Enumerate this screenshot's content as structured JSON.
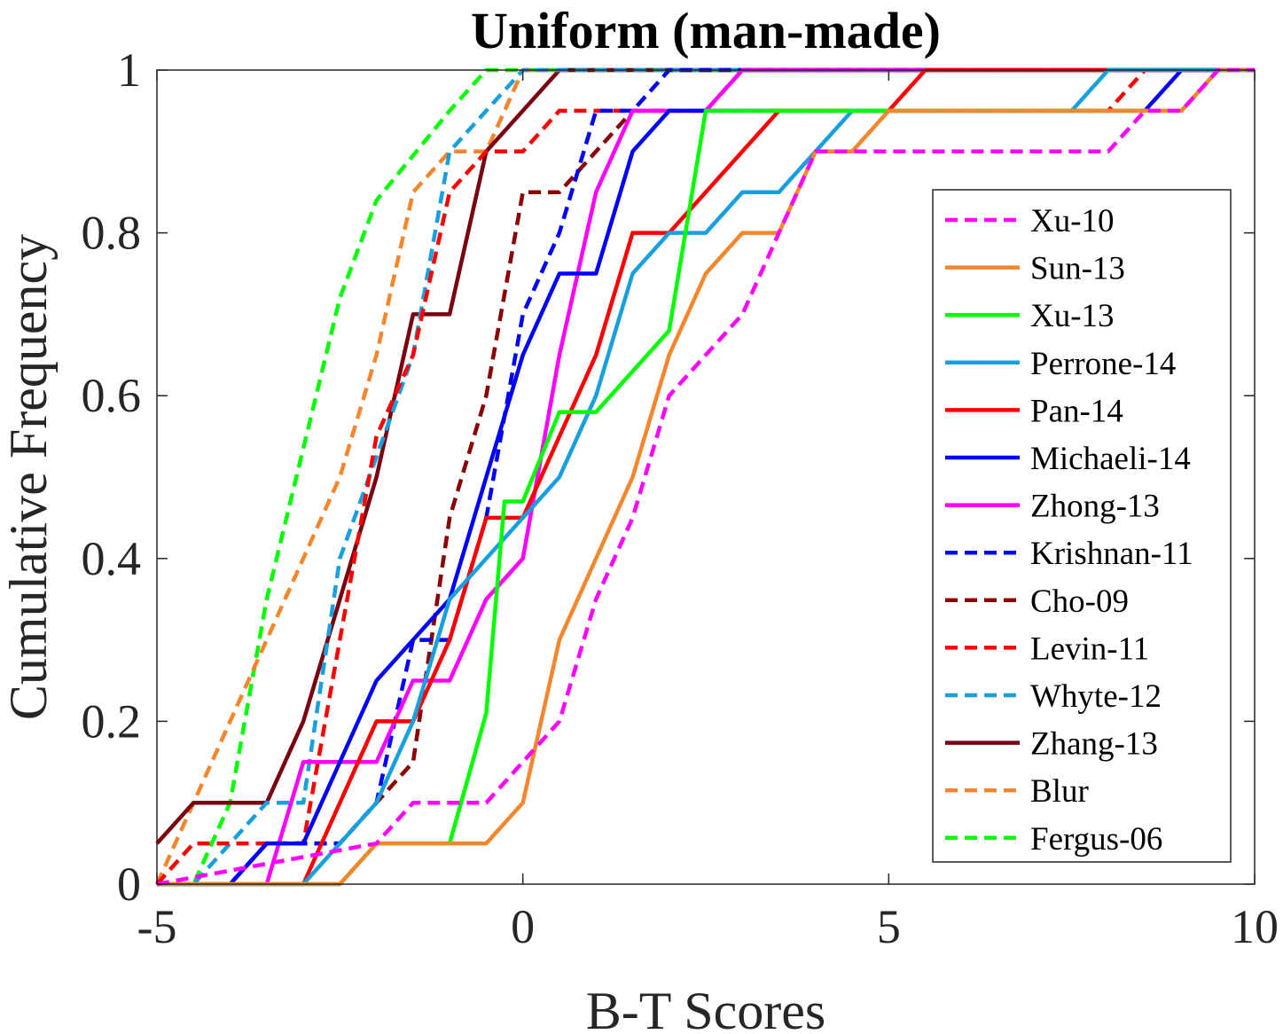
{
  "chart_data": {
    "type": "line",
    "title": "Uniform (man-made)",
    "xlabel": "B-T Scores",
    "ylabel": "Cumulative Frequency",
    "xlim": [
      -5,
      10
    ],
    "ylim": [
      0,
      1
    ],
    "xticks": [
      -5,
      0,
      5,
      10
    ],
    "xtick_labels": [
      "-5",
      "0",
      "5",
      "10"
    ],
    "yticks": [
      0,
      0.2,
      0.4,
      0.6,
      0.8,
      1
    ],
    "ytick_labels": [
      "0",
      "0.2",
      "0.4",
      "0.6",
      "0.8",
      "1"
    ],
    "grid": false,
    "legend_position": "right",
    "series": [
      {
        "name": "Xu-10",
        "color": "#ff00ff",
        "dash": true,
        "points": [
          [
            -5,
            0
          ],
          [
            -2,
            0.05
          ],
          [
            -1.5,
            0.1
          ],
          [
            -0.5,
            0.1
          ],
          [
            0,
            0.15
          ],
          [
            0.5,
            0.2
          ],
          [
            1,
            0.35
          ],
          [
            1.5,
            0.45
          ],
          [
            2,
            0.6
          ],
          [
            2.5,
            0.65
          ],
          [
            3,
            0.7
          ],
          [
            3.5,
            0.8
          ],
          [
            4,
            0.9
          ],
          [
            8,
            0.9
          ],
          [
            8.5,
            0.95
          ],
          [
            9,
            0.95
          ],
          [
            9.5,
            1
          ],
          [
            10,
            1
          ]
        ]
      },
      {
        "name": "Sun-13",
        "color": "#f5862b",
        "dash": false,
        "points": [
          [
            -5,
            0
          ],
          [
            -2.5,
            0
          ],
          [
            -2,
            0.05
          ],
          [
            -0.5,
            0.05
          ],
          [
            0,
            0.1
          ],
          [
            0.5,
            0.3
          ],
          [
            1,
            0.4
          ],
          [
            1.5,
            0.5
          ],
          [
            2,
            0.65
          ],
          [
            2.5,
            0.75
          ],
          [
            3,
            0.8
          ],
          [
            3.5,
            0.8
          ],
          [
            4,
            0.9
          ],
          [
            4.5,
            0.9
          ],
          [
            5,
            0.95
          ],
          [
            9,
            0.95
          ],
          [
            9.5,
            1
          ],
          [
            10,
            1
          ]
        ]
      },
      {
        "name": "Xu-13",
        "color": "#00ff00",
        "dash": false,
        "points": [
          [
            -5,
            0
          ],
          [
            -2.5,
            0
          ],
          [
            -2,
            0.05
          ],
          [
            -1,
            0.05
          ],
          [
            -0.5,
            0.21
          ],
          [
            -0.25,
            0.47
          ],
          [
            0,
            0.47
          ],
          [
            0.5,
            0.58
          ],
          [
            1,
            0.58
          ],
          [
            2,
            0.68
          ],
          [
            2.5,
            0.95
          ],
          [
            9,
            0.95
          ],
          [
            9.5,
            1
          ],
          [
            10,
            1
          ]
        ]
      },
      {
        "name": "Perrone-14",
        "color": "#16a0e0",
        "dash": false,
        "points": [
          [
            -5,
            0
          ],
          [
            -3,
            0
          ],
          [
            -2,
            0.1
          ],
          [
            -1.5,
            0.2
          ],
          [
            -1,
            0.35
          ],
          [
            0,
            0.45
          ],
          [
            0.5,
            0.5
          ],
          [
            1,
            0.6
          ],
          [
            1.5,
            0.75
          ],
          [
            2,
            0.8
          ],
          [
            2.5,
            0.8
          ],
          [
            3,
            0.85
          ],
          [
            3.5,
            0.85
          ],
          [
            4,
            0.9
          ],
          [
            4.5,
            0.95
          ],
          [
            7.5,
            0.95
          ],
          [
            8,
            1
          ],
          [
            10,
            1
          ]
        ]
      },
      {
        "name": "Pan-14",
        "color": "#ff0000",
        "dash": false,
        "points": [
          [
            -5,
            0
          ],
          [
            -3,
            0
          ],
          [
            -2,
            0.2
          ],
          [
            -1.5,
            0.2
          ],
          [
            -1,
            0.3
          ],
          [
            -0.5,
            0.45
          ],
          [
            0,
            0.45
          ],
          [
            1,
            0.65
          ],
          [
            1.5,
            0.8
          ],
          [
            2,
            0.8
          ],
          [
            3.5,
            0.95
          ],
          [
            5,
            0.95
          ],
          [
            5.5,
            1
          ],
          [
            10,
            1
          ]
        ]
      },
      {
        "name": "Michaeli-14",
        "color": "#0000ff",
        "dash": false,
        "points": [
          [
            -5,
            0
          ],
          [
            -4,
            0
          ],
          [
            -3.5,
            0.05
          ],
          [
            -3,
            0.05
          ],
          [
            -2,
            0.25
          ],
          [
            -1,
            0.35
          ],
          [
            0,
            0.65
          ],
          [
            0.5,
            0.75
          ],
          [
            1,
            0.75
          ],
          [
            1.5,
            0.9
          ],
          [
            2,
            0.95
          ],
          [
            8.5,
            0.95
          ],
          [
            9,
            1
          ],
          [
            10,
            1
          ]
        ]
      },
      {
        "name": "Zhong-13",
        "color": "#ff00ff",
        "dash": false,
        "points": [
          [
            -5,
            0
          ],
          [
            -3.5,
            0
          ],
          [
            -3,
            0.15
          ],
          [
            -2,
            0.15
          ],
          [
            -1.5,
            0.25
          ],
          [
            -1,
            0.25
          ],
          [
            -0.5,
            0.35
          ],
          [
            0,
            0.4
          ],
          [
            0.5,
            0.65
          ],
          [
            1,
            0.85
          ],
          [
            1.5,
            0.95
          ],
          [
            2.5,
            0.95
          ],
          [
            3,
            1
          ],
          [
            10,
            1
          ]
        ]
      },
      {
        "name": "Krishnan-11",
        "color": "#0000ff",
        "dash": true,
        "points": [
          [
            -5,
            0
          ],
          [
            -4,
            0
          ],
          [
            -3.5,
            0.05
          ],
          [
            -2.5,
            0.05
          ],
          [
            -2,
            0.1
          ],
          [
            -1.5,
            0.3
          ],
          [
            -1,
            0.3
          ],
          [
            -0.5,
            0.45
          ],
          [
            0,
            0.7
          ],
          [
            0.5,
            0.8
          ],
          [
            1,
            0.95
          ],
          [
            1.5,
            0.95
          ],
          [
            2,
            1
          ],
          [
            10,
            1
          ]
        ]
      },
      {
        "name": "Cho-09",
        "color": "#8b0000",
        "dash": true,
        "points": [
          [
            -5,
            0
          ],
          [
            -4,
            0
          ],
          [
            -3.5,
            0.05
          ],
          [
            -2.5,
            0.05
          ],
          [
            -1.5,
            0.15
          ],
          [
            -1,
            0.45
          ],
          [
            -0.5,
            0.6
          ],
          [
            0,
            0.85
          ],
          [
            0.5,
            0.85
          ],
          [
            1,
            0.9
          ],
          [
            1.5,
            0.95
          ],
          [
            2.5,
            0.95
          ],
          [
            3,
            1
          ],
          [
            10,
            1
          ]
        ]
      },
      {
        "name": "Levin-11",
        "color": "#ff0000",
        "dash": true,
        "points": [
          [
            -5,
            0
          ],
          [
            -4.5,
            0.05
          ],
          [
            -3,
            0.05
          ],
          [
            -2.5,
            0.3
          ],
          [
            -2,
            0.55
          ],
          [
            -1.5,
            0.65
          ],
          [
            -1,
            0.85
          ],
          [
            -0.5,
            0.9
          ],
          [
            0,
            0.9
          ],
          [
            0.5,
            0.95
          ],
          [
            8,
            0.95
          ],
          [
            8.5,
            1
          ],
          [
            10,
            1
          ]
        ]
      },
      {
        "name": "Whyte-12",
        "color": "#16a0e0",
        "dash": true,
        "points": [
          [
            -5,
            0
          ],
          [
            -4.5,
            0
          ],
          [
            -4,
            0.05
          ],
          [
            -3.5,
            0.1
          ],
          [
            -3,
            0.1
          ],
          [
            -2.5,
            0.4
          ],
          [
            -1.5,
            0.65
          ],
          [
            -1,
            0.9
          ],
          [
            -0.5,
            0.95
          ],
          [
            0,
            1
          ],
          [
            10,
            1
          ]
        ]
      },
      {
        "name": "Zhang-13",
        "color": "#7a0010",
        "dash": false,
        "points": [
          [
            -5,
            0.05
          ],
          [
            -4.5,
            0.1
          ],
          [
            -3.5,
            0.1
          ],
          [
            -3,
            0.2
          ],
          [
            -2,
            0.5
          ],
          [
            -1.5,
            0.7
          ],
          [
            -1,
            0.7
          ],
          [
            -0.5,
            0.9
          ],
          [
            0.5,
            1
          ],
          [
            10,
            1
          ]
        ]
      },
      {
        "name": "Blur",
        "color": "#f5862b",
        "dash": true,
        "points": [
          [
            -5,
            0
          ],
          [
            -4.5,
            0.1
          ],
          [
            -3.5,
            0.3
          ],
          [
            -2.5,
            0.5
          ],
          [
            -2,
            0.65
          ],
          [
            -1.5,
            0.85
          ],
          [
            -1,
            0.9
          ],
          [
            -0.5,
            0.9
          ],
          [
            0,
            1
          ],
          [
            10,
            1
          ]
        ]
      },
      {
        "name": "Fergus-06",
        "color": "#00ff00",
        "dash": true,
        "points": [
          [
            -5,
            0
          ],
          [
            -4.5,
            0
          ],
          [
            -4,
            0.1
          ],
          [
            -3.5,
            0.35
          ],
          [
            -2.5,
            0.72
          ],
          [
            -2,
            0.84
          ],
          [
            -1,
            0.95
          ],
          [
            -0.5,
            1
          ],
          [
            10,
            1
          ]
        ]
      }
    ]
  }
}
